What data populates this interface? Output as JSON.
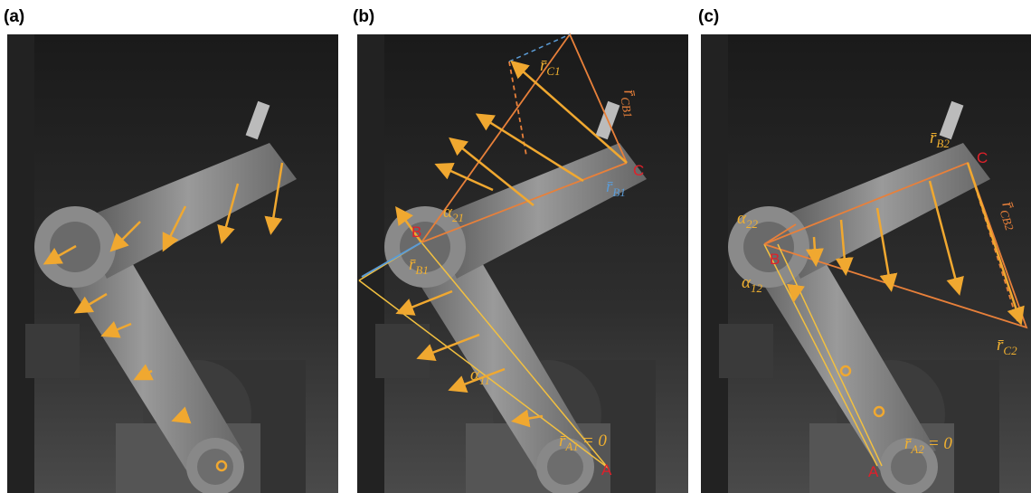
{
  "panels": [
    {
      "label": "(a)"
    },
    {
      "label": "(b)",
      "annotations": [
        {
          "text": "B"
        },
        {
          "text": "C"
        },
        {
          "text": "A"
        },
        {
          "text": "r̄",
          "sub": "C1"
        },
        {
          "text": "r̄",
          "sub": "CB1"
        },
        {
          "text": "r̄",
          "sub": "B1"
        },
        {
          "text": "r̄",
          "sub": "B1"
        },
        {
          "text": "α",
          "sub": "21"
        },
        {
          "text": "α",
          "sub": "11"
        },
        {
          "text": "r̄",
          "sub": "A1",
          "rest": "= 0"
        }
      ]
    },
    {
      "label": "(c)",
      "annotations": [
        {
          "text": "B"
        },
        {
          "text": "C"
        },
        {
          "text": "A"
        },
        {
          "text": "r̄",
          "sub": "B2"
        },
        {
          "text": "r̄",
          "sub": "CB2"
        },
        {
          "text": "r̄",
          "sub": "C2"
        },
        {
          "text": "α",
          "sub": "22"
        },
        {
          "text": "α",
          "sub": "12"
        },
        {
          "text": "r̄",
          "sub": "A2",
          "rest": "= 0"
        }
      ]
    }
  ]
}
